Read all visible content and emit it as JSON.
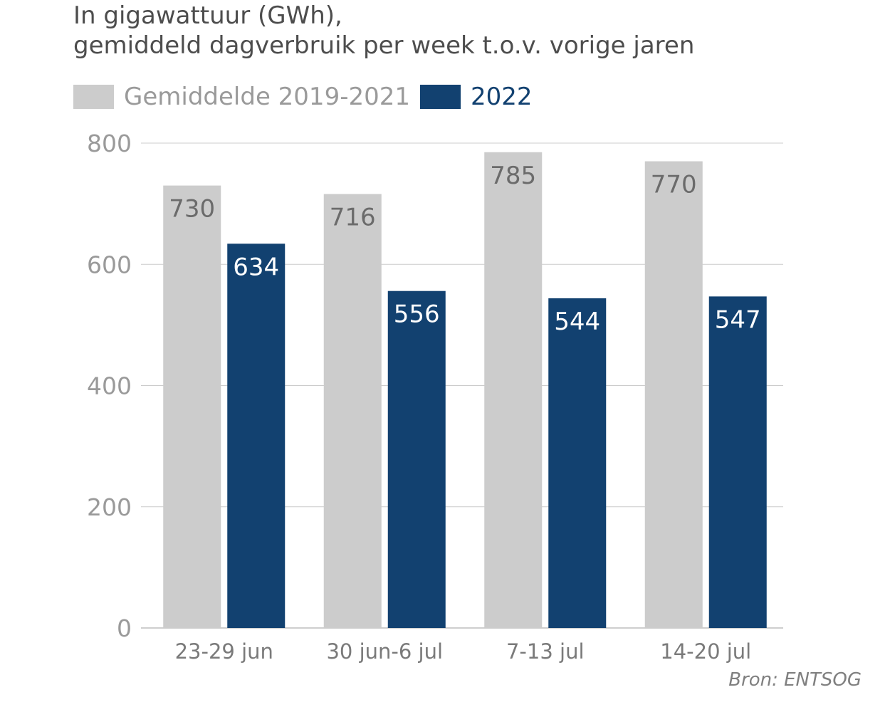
{
  "chart_data": {
    "type": "bar",
    "title": "In gigawattuur (GWh),",
    "subtitle": "gemiddeld dagverbruik per week t.o.v. vorige jaren",
    "categories": [
      "23-29 jun",
      "30 jun-6 jul",
      "7-13 jul",
      "14-20 jul"
    ],
    "series": [
      {
        "name": "Gemiddelde 2019-2021",
        "values": [
          730,
          716,
          785,
          770
        ],
        "color": "#cccccc",
        "label_color": "#6b6b6b",
        "legend_text_color": "#9a9a9a"
      },
      {
        "name": "2022",
        "values": [
          634,
          556,
          544,
          547
        ],
        "color": "#124170",
        "label_color": "#ffffff",
        "legend_text_color": "#124170"
      }
    ],
    "yticks": [
      0,
      200,
      400,
      600,
      800
    ],
    "ylim": [
      0,
      800
    ],
    "xlabel": "",
    "ylabel": "",
    "grid": true,
    "legend_position": "top-left",
    "source": "Bron: ENTSOG"
  }
}
